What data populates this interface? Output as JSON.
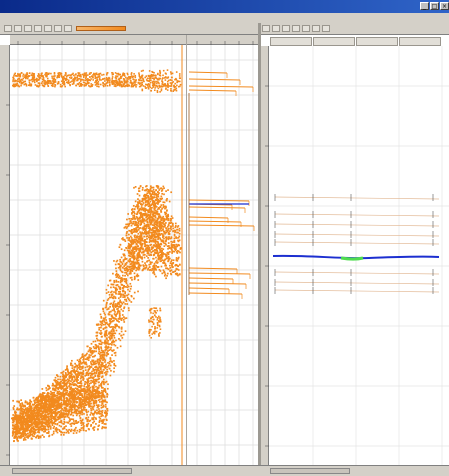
{
  "window": {
    "title": ""
  },
  "menu": {
    "items": []
  },
  "toolbar_left": {
    "buttons": [
      "zoom-in-icon",
      "zoom-out-icon",
      "pointer-icon",
      "select-icon",
      "pan-icon",
      "measure-icon",
      "marker-icon"
    ],
    "range_label": ""
  },
  "toolbar_right": {
    "buttons": [
      "play-icon",
      "stop-icon",
      "step-icon",
      "loop-icon",
      "grid-icon",
      "zoom-icon",
      "export-icon"
    ]
  },
  "right_columns": [
    {
      "label": ""
    },
    {
      "label": ""
    },
    {
      "label": ""
    },
    {
      "label": ""
    }
  ],
  "colors": {
    "scatter": "#f28a1e",
    "trace_line": "#1c2fd0",
    "trace_highlight": "#4fdc4f",
    "grid": "#dcdcdc",
    "chrome": "#d4d0c8",
    "titlebar": "#0a2a8a"
  }
}
